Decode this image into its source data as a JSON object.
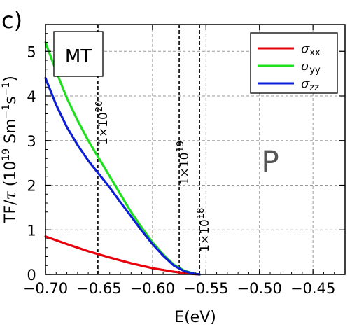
{
  "panel_label": "c)",
  "chart_data": {
    "type": "line",
    "xlabel": "E(eV)",
    "ylabel_main": "TF/",
    "ylabel_tau": "τ",
    "ylabel_units": " (10",
    "ylabel_exp1": "19",
    "ylabel_units2": " Sm",
    "ylabel_exp2": "−1",
    "ylabel_units3": "s",
    "ylabel_exp3": "−1",
    "ylabel_close": ")",
    "xlim": [
      -0.7,
      -0.42
    ],
    "ylim": [
      0,
      5.6
    ],
    "xticks": [
      -0.7,
      -0.65,
      -0.6,
      -0.55,
      -0.5,
      -0.45
    ],
    "xtick_labels": [
      "−0.70",
      "−0.65",
      "−0.60",
      "−0.55",
      "−0.50",
      "−0.45"
    ],
    "yticks": [
      0,
      1,
      2,
      3,
      4,
      5
    ],
    "ytick_labels": [
      "0",
      "1",
      "2",
      "3",
      "4",
      "5"
    ],
    "grid": true,
    "legend_position": "top-right",
    "series": [
      {
        "name": "σ",
        "sub": "xx",
        "color": "#e8000b",
        "x": [
          -0.7,
          -0.68,
          -0.66,
          -0.64,
          -0.62,
          -0.6,
          -0.58,
          -0.57,
          -0.56,
          -0.556
        ],
        "y": [
          0.85,
          0.68,
          0.52,
          0.38,
          0.25,
          0.14,
          0.06,
          0.03,
          0.005,
          0.0
        ]
      },
      {
        "name": "σ",
        "sub": "yy",
        "color": "#1ee01e",
        "x": [
          -0.7,
          -0.69,
          -0.68,
          -0.67,
          -0.66,
          -0.65,
          -0.64,
          -0.63,
          -0.62,
          -0.61,
          -0.6,
          -0.59,
          -0.58,
          -0.57,
          -0.56,
          -0.556
        ],
        "y": [
          5.2,
          4.55,
          3.95,
          3.45,
          3.0,
          2.6,
          2.2,
          1.8,
          1.4,
          1.05,
          0.72,
          0.45,
          0.22,
          0.08,
          0.015,
          0.0
        ]
      },
      {
        "name": "σ",
        "sub": "zz",
        "color": "#0d1fd6",
        "x": [
          -0.7,
          -0.69,
          -0.68,
          -0.67,
          -0.66,
          -0.65,
          -0.64,
          -0.63,
          -0.62,
          -0.61,
          -0.6,
          -0.59,
          -0.58,
          -0.57,
          -0.56,
          -0.556
        ],
        "y": [
          4.4,
          3.8,
          3.3,
          2.9,
          2.55,
          2.25,
          1.95,
          1.62,
          1.3,
          0.98,
          0.68,
          0.42,
          0.2,
          0.07,
          0.012,
          0.0
        ]
      }
    ],
    "vlines": [
      {
        "x": -0.651,
        "label": "1×10",
        "exp": "20",
        "label_y": 3.4
      },
      {
        "x": -0.575,
        "label": "1×10",
        "exp": "19",
        "label_y": 2.5
      },
      {
        "x": -0.556,
        "label": "1×10",
        "exp": "18",
        "label_y": 1.0
      }
    ],
    "region_labels": [
      {
        "text": "MT",
        "x": -0.68,
        "y": 4.9,
        "boxed": true
      },
      {
        "text": "P",
        "x": -0.49,
        "y": 2.3,
        "boxed": false
      }
    ]
  }
}
